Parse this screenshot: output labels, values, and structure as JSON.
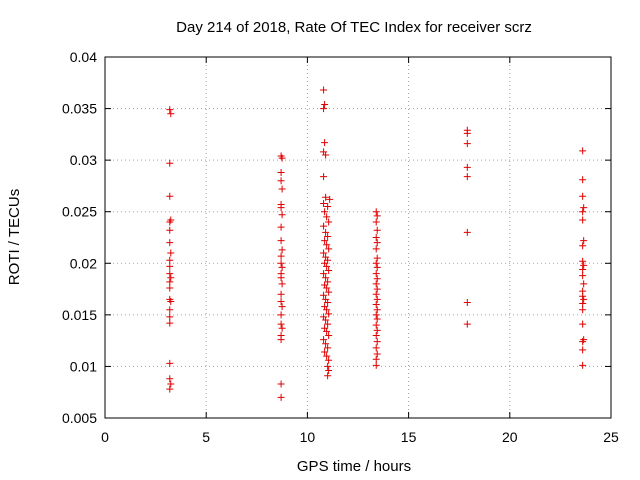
{
  "chart_data": {
    "type": "scatter",
    "title": "Day 214 of 2018, Rate Of TEC Index for receiver scrz",
    "xlabel": "GPS time / hours",
    "ylabel": "ROTI / TECUs",
    "xlim": [
      0,
      25
    ],
    "ylim": [
      0.005,
      0.04
    ],
    "xticks": [
      0,
      5,
      10,
      15,
      20,
      25
    ],
    "xtick_labels": [
      "0",
      "5",
      "10",
      "15",
      "20",
      "25"
    ],
    "yticks": [
      0.005,
      0.01,
      0.015,
      0.02,
      0.025,
      0.03,
      0.035,
      0.04
    ],
    "ytick_labels": [
      "0.005",
      "0.01",
      "0.015",
      "0.02",
      "0.025",
      "0.03",
      "0.035",
      "0.04"
    ],
    "grid": true,
    "marker": "plus",
    "color": "#e00000",
    "series": [
      {
        "name": "ROTI",
        "points": [
          [
            3.2,
            0.0349
          ],
          [
            3.25,
            0.0345
          ],
          [
            3.2,
            0.0297
          ],
          [
            3.2,
            0.0265
          ],
          [
            3.25,
            0.0242
          ],
          [
            3.2,
            0.024
          ],
          [
            3.2,
            0.0232
          ],
          [
            3.2,
            0.022
          ],
          [
            3.25,
            0.021
          ],
          [
            3.2,
            0.0203
          ],
          [
            3.2,
            0.0197
          ],
          [
            3.2,
            0.019
          ],
          [
            3.25,
            0.0186
          ],
          [
            3.2,
            0.0182
          ],
          [
            3.2,
            0.0176
          ],
          [
            3.2,
            0.0165
          ],
          [
            3.25,
            0.0163
          ],
          [
            3.2,
            0.0155
          ],
          [
            3.2,
            0.0148
          ],
          [
            3.2,
            0.0142
          ],
          [
            3.2,
            0.0103
          ],
          [
            3.2,
            0.0088
          ],
          [
            3.25,
            0.0083
          ],
          [
            3.2,
            0.0078
          ],
          [
            8.7,
            0.0304
          ],
          [
            8.75,
            0.0302
          ],
          [
            8.7,
            0.0288
          ],
          [
            8.7,
            0.028
          ],
          [
            8.75,
            0.0272
          ],
          [
            8.7,
            0.0257
          ],
          [
            8.7,
            0.0254
          ],
          [
            8.75,
            0.0247
          ],
          [
            8.7,
            0.0235
          ],
          [
            8.7,
            0.0222
          ],
          [
            8.75,
            0.0213
          ],
          [
            8.7,
            0.0207
          ],
          [
            8.7,
            0.02
          ],
          [
            8.75,
            0.0196
          ],
          [
            8.7,
            0.019
          ],
          [
            8.7,
            0.0186
          ],
          [
            8.75,
            0.018
          ],
          [
            8.7,
            0.017
          ],
          [
            8.7,
            0.0163
          ],
          [
            8.75,
            0.0158
          ],
          [
            8.7,
            0.015
          ],
          [
            8.7,
            0.0141
          ],
          [
            8.75,
            0.0137
          ],
          [
            8.7,
            0.013
          ],
          [
            8.7,
            0.0126
          ],
          [
            8.7,
            0.0083
          ],
          [
            8.7,
            0.007
          ],
          [
            10.8,
            0.0368
          ],
          [
            10.85,
            0.0354
          ],
          [
            10.8,
            0.035
          ],
          [
            10.85,
            0.0317
          ],
          [
            10.8,
            0.0308
          ],
          [
            10.9,
            0.0305
          ],
          [
            10.8,
            0.0284
          ],
          [
            10.9,
            0.0264
          ],
          [
            10.8,
            0.0258
          ],
          [
            11.0,
            0.0255
          ],
          [
            11.1,
            0.0262
          ],
          [
            10.85,
            0.025
          ],
          [
            10.95,
            0.0245
          ],
          [
            11.05,
            0.024
          ],
          [
            10.8,
            0.0236
          ],
          [
            10.9,
            0.023
          ],
          [
            11.0,
            0.0226
          ],
          [
            10.85,
            0.0222
          ],
          [
            10.95,
            0.0218
          ],
          [
            11.05,
            0.0214
          ],
          [
            10.8,
            0.021
          ],
          [
            10.9,
            0.0206
          ],
          [
            11.0,
            0.0203
          ],
          [
            10.85,
            0.02
          ],
          [
            10.95,
            0.0197
          ],
          [
            11.05,
            0.0193
          ],
          [
            10.8,
            0.019
          ],
          [
            10.9,
            0.0186
          ],
          [
            11.0,
            0.0182
          ],
          [
            10.85,
            0.0179
          ],
          [
            10.95,
            0.0176
          ],
          [
            11.05,
            0.0172
          ],
          [
            10.8,
            0.0169
          ],
          [
            10.9,
            0.0165
          ],
          [
            11.0,
            0.0162
          ],
          [
            10.85,
            0.0158
          ],
          [
            10.95,
            0.0155
          ],
          [
            11.05,
            0.0151
          ],
          [
            10.8,
            0.0148
          ],
          [
            10.9,
            0.0145
          ],
          [
            11.0,
            0.0141
          ],
          [
            10.85,
            0.0137
          ],
          [
            10.95,
            0.0134
          ],
          [
            11.05,
            0.013
          ],
          [
            10.8,
            0.0126
          ],
          [
            10.9,
            0.0122
          ],
          [
            11.0,
            0.0118
          ],
          [
            10.85,
            0.0114
          ],
          [
            10.95,
            0.011
          ],
          [
            11.05,
            0.0106
          ],
          [
            11.0,
            0.01
          ],
          [
            11.05,
            0.0096
          ],
          [
            11.0,
            0.0091
          ],
          [
            13.4,
            0.025
          ],
          [
            13.45,
            0.0246
          ],
          [
            13.4,
            0.024
          ],
          [
            13.45,
            0.0232
          ],
          [
            13.4,
            0.0225
          ],
          [
            13.45,
            0.022
          ],
          [
            13.4,
            0.0214
          ],
          [
            13.45,
            0.0205
          ],
          [
            13.4,
            0.02
          ],
          [
            13.45,
            0.0196
          ],
          [
            13.4,
            0.019
          ],
          [
            13.45,
            0.0185
          ],
          [
            13.4,
            0.018
          ],
          [
            13.45,
            0.0175
          ],
          [
            13.4,
            0.017
          ],
          [
            13.45,
            0.0165
          ],
          [
            13.4,
            0.016
          ],
          [
            13.45,
            0.0155
          ],
          [
            13.4,
            0.015
          ],
          [
            13.45,
            0.0146
          ],
          [
            13.4,
            0.014
          ],
          [
            13.45,
            0.0135
          ],
          [
            13.4,
            0.013
          ],
          [
            13.45,
            0.0124
          ],
          [
            13.4,
            0.0118
          ],
          [
            13.45,
            0.0112
          ],
          [
            13.4,
            0.0107
          ],
          [
            13.4,
            0.0101
          ],
          [
            17.9,
            0.0329
          ],
          [
            17.9,
            0.0326
          ],
          [
            17.9,
            0.0316
          ],
          [
            17.9,
            0.0293
          ],
          [
            17.9,
            0.0284
          ],
          [
            17.9,
            0.023
          ],
          [
            17.9,
            0.0162
          ],
          [
            17.9,
            0.0141
          ],
          [
            23.6,
            0.0309
          ],
          [
            23.6,
            0.0281
          ],
          [
            23.6,
            0.0265
          ],
          [
            23.65,
            0.0254
          ],
          [
            23.6,
            0.025
          ],
          [
            23.6,
            0.0242
          ],
          [
            23.65,
            0.0222
          ],
          [
            23.6,
            0.0217
          ],
          [
            23.6,
            0.0202
          ],
          [
            23.65,
            0.0198
          ],
          [
            23.6,
            0.0194
          ],
          [
            23.6,
            0.0188
          ],
          [
            23.65,
            0.018
          ],
          [
            23.6,
            0.0173
          ],
          [
            23.6,
            0.0168
          ],
          [
            23.65,
            0.0165
          ],
          [
            23.6,
            0.0161
          ],
          [
            23.6,
            0.0155
          ],
          [
            23.6,
            0.0141
          ],
          [
            23.65,
            0.0126
          ],
          [
            23.6,
            0.0124
          ],
          [
            23.6,
            0.0116
          ],
          [
            23.6,
            0.0101
          ]
        ]
      }
    ]
  }
}
